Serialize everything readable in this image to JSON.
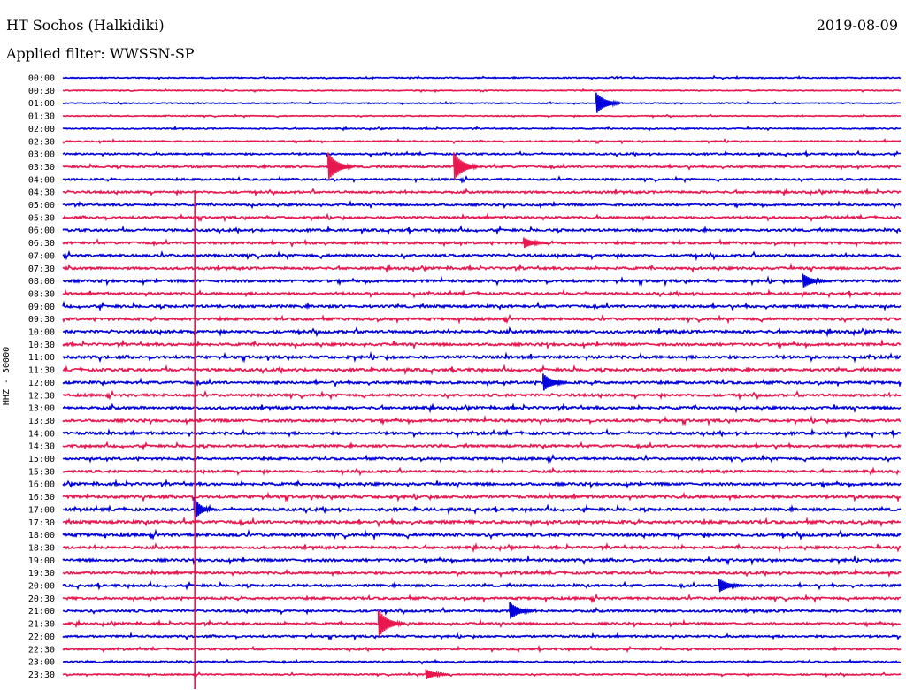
{
  "header": {
    "station": "HT Sochos (Halkidiki)",
    "date": "2019-08-09",
    "filter": "Applied filter: WWSSN-SP"
  },
  "chart_data": {
    "type": "line",
    "title": "HT Sochos (Halkidiki)",
    "ylabel": "HHZ - 50000",
    "xlabel": "",
    "colors": [
      "#0000dd",
      "#e8174f"
    ],
    "rows": [
      "00:00",
      "00:30",
      "01:00",
      "01:30",
      "02:00",
      "02:30",
      "03:00",
      "03:30",
      "04:00",
      "04:30",
      "05:00",
      "05:30",
      "06:00",
      "06:30",
      "07:00",
      "07:30",
      "08:00",
      "08:30",
      "09:00",
      "09:30",
      "10:00",
      "10:30",
      "11:00",
      "11:30",
      "12:00",
      "12:30",
      "13:00",
      "13:30",
      "14:00",
      "14:30",
      "15:00",
      "15:30",
      "16:00",
      "16:30",
      "17:00",
      "17:30",
      "18:00",
      "18:30",
      "19:00",
      "19:30",
      "20:00",
      "20:30",
      "21:00",
      "21:30",
      "22:00",
      "22:30",
      "23:00",
      "23:30"
    ],
    "noise_levels": [
      0.6,
      0.5,
      0.5,
      0.5,
      0.6,
      0.7,
      0.9,
      1.0,
      1.0,
      1.1,
      1.0,
      1.1,
      1.2,
      1.2,
      1.3,
      1.2,
      1.3,
      1.2,
      1.3,
      1.3,
      1.4,
      1.3,
      1.4,
      1.4,
      1.3,
      1.3,
      1.3,
      1.3,
      1.3,
      1.2,
      1.2,
      1.2,
      1.3,
      1.4,
      1.4,
      1.5,
      1.5,
      1.3,
      1.3,
      1.2,
      1.2,
      1.2,
      1.1,
      1.1,
      1.0,
      0.9,
      0.8,
      0.7
    ],
    "events": [
      {
        "row": 2,
        "minute": 19.1,
        "amp": 12
      },
      {
        "row": 7,
        "minute": 9.5,
        "amp": 16
      },
      {
        "row": 7,
        "minute": 14.0,
        "amp": 16
      },
      {
        "row": 13,
        "minute": 16.5,
        "amp": 6
      },
      {
        "row": 16,
        "minute": 26.5,
        "amp": 8
      },
      {
        "row": 24,
        "minute": 17.2,
        "amp": 10
      },
      {
        "row": 34,
        "minute": 4.7,
        "amp": 300
      },
      {
        "row": 42,
        "minute": 16.0,
        "amp": 10
      },
      {
        "row": 43,
        "minute": 11.3,
        "amp": 16
      },
      {
        "row": 40,
        "minute": 23.5,
        "amp": 8
      },
      {
        "row": 47,
        "minute": 13.0,
        "amp": 6
      }
    ]
  }
}
